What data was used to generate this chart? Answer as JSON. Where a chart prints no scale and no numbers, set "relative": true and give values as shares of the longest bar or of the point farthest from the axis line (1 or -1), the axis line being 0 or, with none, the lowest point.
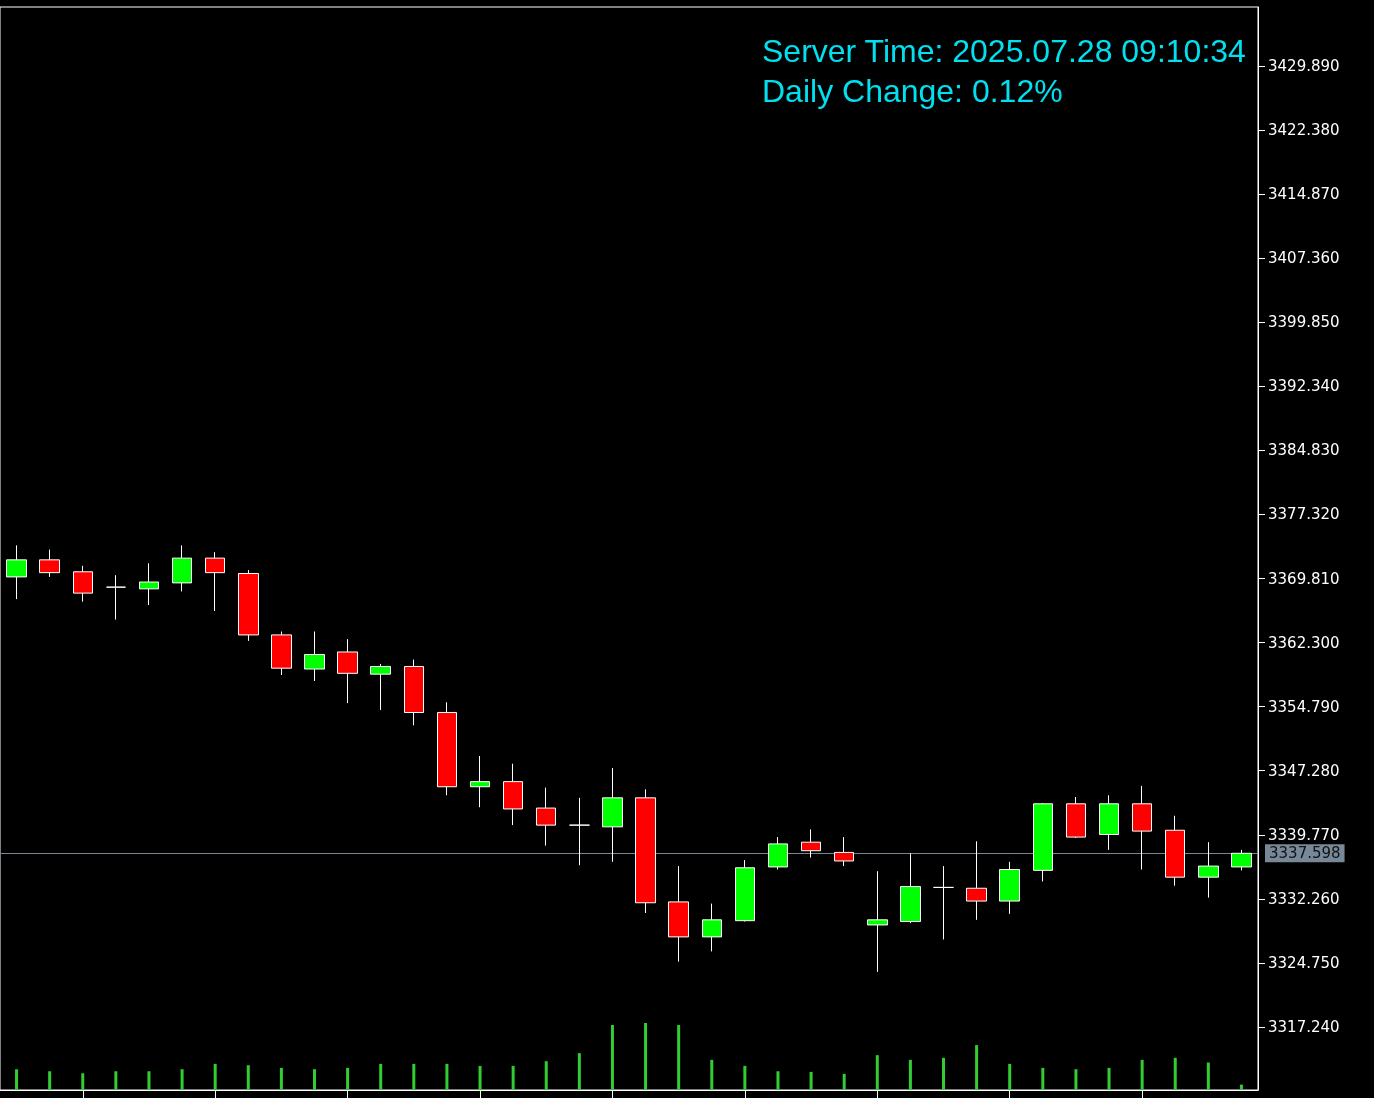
{
  "chart_data": [
    {
      "type": "candlestick",
      "annotations": [
        "Server Time: 2025.07.28 09:10:34",
        "Daily Change: 0.12%"
      ],
      "categories": [
        null,
        null,
        null,
        null,
        null,
        null,
        null,
        null,
        null,
        null,
        null,
        null,
        null,
        null,
        null,
        null,
        null,
        null,
        null,
        null,
        null,
        null,
        null,
        null,
        null,
        null,
        null,
        null,
        null,
        null,
        null,
        null,
        null,
        null,
        null,
        null,
        null,
        null
      ],
      "ohlc": [
        [
          3370.0,
          3373.7,
          3367.4,
          3372.0
        ],
        [
          3372.0,
          3373.2,
          3370.0,
          3370.5
        ],
        [
          3370.6,
          3371.3,
          3367.1,
          3368.1
        ],
        [
          3368.8,
          3370.2,
          3365.0,
          3368.8
        ],
        [
          3368.6,
          3371.6,
          3366.7,
          3369.4
        ],
        [
          3369.3,
          3373.7,
          3368.3,
          3372.2
        ],
        [
          3372.2,
          3372.9,
          3366.0,
          3370.5
        ],
        [
          3370.4,
          3370.8,
          3362.5,
          3363.2
        ],
        [
          3363.2,
          3363.6,
          3358.5,
          3359.3
        ],
        [
          3359.2,
          3363.6,
          3357.8,
          3360.9
        ],
        [
          3361.2,
          3362.7,
          3355.2,
          3358.7
        ],
        [
          3358.6,
          3359.8,
          3354.4,
          3359.5
        ],
        [
          3359.5,
          3360.3,
          3352.6,
          3354.1
        ],
        [
          3354.1,
          3355.3,
          3344.4,
          3345.4
        ],
        [
          3345.4,
          3349.0,
          3343.0,
          3346.0
        ],
        [
          3346.0,
          3348.1,
          3340.9,
          3342.8
        ],
        [
          3342.9,
          3345.3,
          3338.5,
          3340.9
        ],
        [
          3340.9,
          3344.1,
          3336.2,
          3340.9
        ],
        [
          3340.7,
          3347.6,
          3336.6,
          3344.1
        ],
        [
          3344.1,
          3345.1,
          3330.6,
          3331.8
        ],
        [
          3331.9,
          3336.1,
          3324.9,
          3327.8
        ],
        [
          3327.8,
          3331.7,
          3326.1,
          3329.8
        ],
        [
          3329.7,
          3336.8,
          3329.6,
          3335.9
        ],
        [
          3336.0,
          3339.5,
          3335.7,
          3338.7
        ],
        [
          3338.9,
          3340.4,
          3337.1,
          3337.9
        ],
        [
          3337.7,
          3339.5,
          3336.1,
          3336.7
        ],
        [
          3329.2,
          3335.5,
          3323.7,
          3329.8
        ],
        [
          3329.6,
          3337.6,
          3329.4,
          3333.7
        ],
        [
          3333.6,
          3336.1,
          3327.5,
          3333.6
        ],
        [
          3333.5,
          3339.0,
          3329.8,
          3332.0
        ],
        [
          3332.0,
          3336.6,
          3330.5,
          3335.7
        ],
        [
          3335.6,
          3343.5,
          3334.3,
          3343.4
        ],
        [
          3343.4,
          3344.2,
          3339.4,
          3339.5
        ],
        [
          3339.8,
          3344.4,
          3338.0,
          3343.4
        ],
        [
          3343.4,
          3345.5,
          3335.7,
          3340.2
        ],
        [
          3340.3,
          3342.0,
          3333.8,
          3334.8
        ],
        [
          3334.8,
          3338.9,
          3332.4,
          3336.1
        ],
        [
          3336.0,
          3338.0,
          3335.6,
          3337.6
        ]
      ],
      "colors": [
        "#00ff00",
        "#ff0000",
        "#ff0000",
        "#ffffff",
        "#00ff00",
        "#00ff00",
        "#ff0000",
        "#ff0000",
        "#ff0000",
        "#00ff00",
        "#ff0000",
        "#00ff00",
        "#ff0000",
        "#ff0000",
        "#00ff00",
        "#ff0000",
        "#ff0000",
        "#ffffff",
        "#00ff00",
        "#ff0000",
        "#ff0000",
        "#00ff00",
        "#00ff00",
        "#00ff00",
        "#ff0000",
        "#ff0000",
        "#00ff00",
        "#00ff00",
        "#ffffff",
        "#ff0000",
        "#00ff00",
        "#00ff00",
        "#ff0000",
        "#00ff00",
        "#ff0000",
        "#ff0000",
        "#00ff00",
        "#00ff00"
      ],
      "ylim": [
        3309.85,
        3436.81
      ],
      "yticks": [
        {
          "value": 3317.24,
          "label": "3317.240"
        },
        {
          "value": 3324.75,
          "label": "3324.750"
        },
        {
          "value": 3332.26,
          "label": "3332.260"
        },
        {
          "value": 3339.77,
          "label": "3339.770"
        },
        {
          "value": 3347.28,
          "label": "3347.280"
        },
        {
          "value": 3354.79,
          "label": "3354.790"
        },
        {
          "value": 3362.3,
          "label": "3362.300"
        },
        {
          "value": 3369.81,
          "label": "3369.810"
        },
        {
          "value": 3377.32,
          "label": "3377.320"
        },
        {
          "value": 3384.83,
          "label": "3384.830"
        },
        {
          "value": 3392.34,
          "label": "3392.340"
        },
        {
          "value": 3399.85,
          "label": "3399.850"
        },
        {
          "value": 3407.36,
          "label": "3407.360"
        },
        {
          "value": 3414.87,
          "label": "3414.870"
        },
        {
          "value": 3422.38,
          "label": "3422.380"
        },
        {
          "value": 3429.89,
          "label": "3429.890"
        }
      ],
      "ref_lines": [
        {
          "axis": "y",
          "value": 3337.598,
          "label": "3337.598",
          "color": "#778899"
        }
      ]
    },
    {
      "type": "bar",
      "relative": true,
      "categories": [
        null,
        null,
        null,
        null,
        null,
        null,
        null,
        null,
        null,
        null,
        null,
        null,
        null,
        null,
        null,
        null,
        null,
        null,
        null,
        null,
        null,
        null,
        null,
        null,
        null,
        null,
        null,
        null,
        null,
        null,
        null,
        null,
        null,
        null,
        null,
        null,
        null,
        null
      ],
      "values": [
        0.31,
        0.28,
        0.25,
        0.28,
        0.28,
        0.31,
        0.39,
        0.37,
        0.33,
        0.31,
        0.33,
        0.39,
        0.39,
        0.39,
        0.36,
        0.36,
        0.43,
        0.55,
        0.97,
        1,
        0.97,
        0.45,
        0.36,
        0.28,
        0.27,
        0.24,
        0.52,
        0.45,
        0.48,
        0.67,
        0.39,
        0.33,
        0.31,
        0.33,
        0.45,
        0.48,
        0.41,
        0.08
      ],
      "color": "#32cd32"
    }
  ]
}
